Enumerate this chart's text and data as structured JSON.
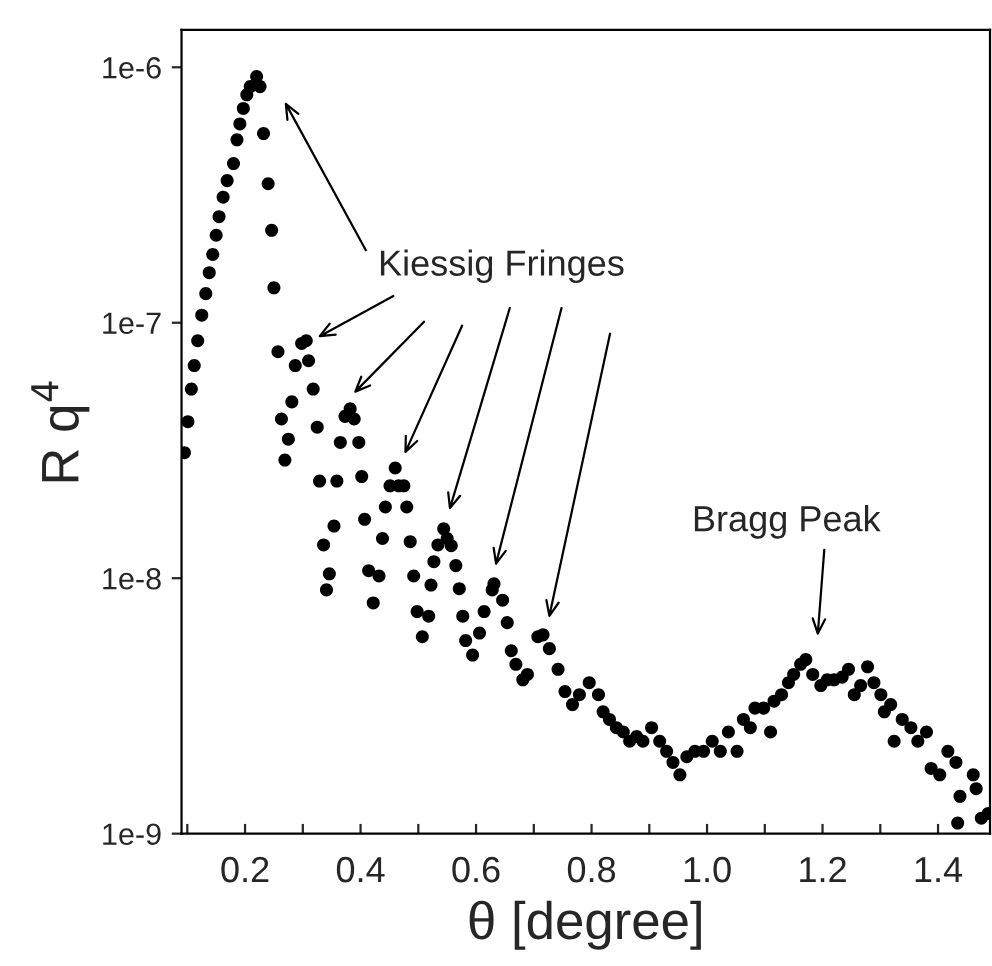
{
  "chart_data": {
    "type": "scatter",
    "xlabel": "θ [degree]",
    "ylabel": "R q$^{4}$",
    "log": "y",
    "marker": "circle",
    "grid": false,
    "legend": false,
    "xlim": [
      0.09,
      1.49
    ],
    "ylim": [
      1e-09,
      1.4e-06
    ],
    "xticks": [
      {
        "value": 0.1,
        "label": null
      },
      0.2,
      {
        "value": 0.3,
        "label": null
      },
      0.4,
      {
        "value": 0.5,
        "label": null
      },
      0.6,
      {
        "value": 0.7,
        "label": null
      },
      0.8,
      {
        "value": 0.9,
        "label": null
      },
      {
        "value": 1.0,
        "label": "1.0"
      },
      {
        "value": 1.1,
        "label": null
      },
      1.2,
      {
        "value": 1.3,
        "label": null
      },
      1.4
    ],
    "yticks": [
      {
        "value": 1e-09,
        "label": "1e-9"
      },
      {
        "value": 1e-08,
        "label": "1e-8"
      },
      {
        "value": 1e-07,
        "label": "1e-7"
      },
      {
        "value": 1e-06,
        "label": "1e-6"
      }
    ],
    "series": [
      {
        "color": "#000000",
        "x": [
          0.095,
          0.101,
          0.107,
          0.112,
          0.118,
          0.125,
          0.132,
          0.138,
          0.144,
          0.15,
          0.155,
          0.162,
          0.169,
          0.18,
          0.186,
          0.191,
          0.197,
          0.203,
          0.209,
          0.22,
          0.226,
          0.232,
          0.24,
          0.246,
          0.25,
          0.257,
          0.287,
          0.298,
          0.306,
          0.31,
          0.318,
          0.281,
          0.263,
          0.275,
          0.269,
          0.325,
          0.382,
          0.373,
          0.389,
          0.365,
          0.397,
          0.329,
          0.359,
          0.402,
          0.46,
          0.466,
          0.451,
          0.475,
          0.443,
          0.48,
          0.407,
          0.354,
          0.336,
          0.438,
          0.486,
          0.346,
          0.341,
          0.414,
          0.432,
          0.422,
          0.492,
          0.498,
          0.507,
          0.518,
          0.544,
          0.55,
          0.557,
          0.534,
          0.565,
          0.527,
          0.522,
          0.571,
          0.577,
          0.582,
          0.594,
          0.606,
          0.614,
          0.628,
          0.631,
          0.646,
          0.654,
          0.661,
          0.669,
          0.681,
          0.689,
          0.707,
          0.716,
          0.727,
          0.742,
          0.754,
          0.767,
          0.779,
          0.796,
          0.812,
          0.82,
          0.831,
          0.843,
          0.855,
          0.866,
          0.878,
          0.889,
          0.904,
          0.918,
          0.93,
          0.941,
          0.953,
          0.965,
          0.979,
          0.994,
          1.009,
          1.023,
          1.037,
          1.052,
          1.063,
          1.075,
          1.083,
          1.098,
          1.11,
          1.116,
          1.129,
          1.141,
          1.15,
          1.162,
          1.171,
          1.183,
          1.197,
          1.208,
          1.22,
          1.234,
          1.245,
          1.255,
          1.266,
          1.278,
          1.289,
          1.301,
          1.307,
          1.318,
          1.324,
          1.338,
          1.353,
          1.365,
          1.38,
          1.388,
          1.403,
          1.417,
          1.431,
          1.438,
          1.434,
          1.461,
          1.466,
          1.475,
          1.487
        ],
        "values": [
          3.1e-08,
          4.1e-08,
          5.5e-08,
          6.8e-08,
          8.5e-08,
          1.07e-07,
          1.3e-07,
          1.57e-07,
          1.85e-07,
          2.2e-07,
          2.6e-07,
          3.1e-07,
          3.6e-07,
          4.2e-07,
          5.2e-07,
          6e-07,
          6.9e-07,
          7.8e-07,
          8.4e-07,
          9.2e-07,
          8.4e-07,
          5.5e-07,
          3.5e-07,
          2.3e-07,
          1.37e-07,
          7.7e-08,
          6.8e-08,
          8.3e-08,
          8.5e-08,
          7.1e-08,
          5.5e-08,
          4.9e-08,
          4.2e-08,
          3.5e-08,
          2.9e-08,
          3.9e-08,
          4.6e-08,
          4.3e-08,
          4.2e-08,
          3.4e-08,
          3.4e-08,
          2.4e-08,
          2.4e-08,
          2.5e-08,
          2.7e-08,
          2.3e-08,
          2.3e-08,
          2.3e-08,
          1.9e-08,
          1.9e-08,
          1.7e-08,
          1.6e-08,
          1.35e-08,
          1.43e-08,
          1.39e-08,
          1.04e-08,
          9e-09,
          1.07e-08,
          1.02e-08,
          8e-09,
          1.02e-08,
          7.4e-09,
          5.9e-09,
          7.1e-09,
          1.56e-08,
          1.43e-08,
          1.34e-08,
          1.35e-08,
          1.12e-08,
          1.16e-08,
          9.4e-09,
          9.1e-09,
          7.1e-09,
          5.7e-09,
          5e-09,
          6.1e-09,
          7.4e-09,
          9e-09,
          9.5e-09,
          8.2e-09,
          6.7e-09,
          5.2e-09,
          4.6e-09,
          4e-09,
          4.2e-09,
          5.9e-09,
          6e-09,
          5.3e-09,
          4.4e-09,
          3.6e-09,
          3.2e-09,
          3.5e-09,
          3.9e-09,
          3.5e-09,
          3e-09,
          2.8e-09,
          2.6e-09,
          2.5e-09,
          2.3e-09,
          2.4e-09,
          2.3e-09,
          2.6e-09,
          2.3e-09,
          2.1e-09,
          1.9e-09,
          1.7e-09,
          2e-09,
          2.1e-09,
          2.1e-09,
          2.3e-09,
          2.1e-09,
          2.5e-09,
          2.1e-09,
          2.8e-09,
          2.6e-09,
          3.1e-09,
          3.1e-09,
          2.5e-09,
          3.3e-09,
          3.5e-09,
          3.9e-09,
          4.2e-09,
          4.6e-09,
          4.8e-09,
          4.2e-09,
          3.8e-09,
          4e-09,
          4e-09,
          4.1e-09,
          4.4e-09,
          3.5e-09,
          3.8e-09,
          4.5e-09,
          3.9e-09,
          3.5e-09,
          3e-09,
          3.2e-09,
          2.3e-09,
          2.8e-09,
          2.6e-09,
          2.3e-09,
          2.5e-09,
          1.8e-09,
          1.7e-09,
          2.1e-09,
          1.9e-09,
          1.4e-09,
          1.1e-09,
          1.7e-09,
          1.5e-09,
          1.15e-09,
          1.2e-09
        ]
      }
    ],
    "annotations": [
      "Kiessig Fringes",
      "Bragg Peak"
    ]
  }
}
